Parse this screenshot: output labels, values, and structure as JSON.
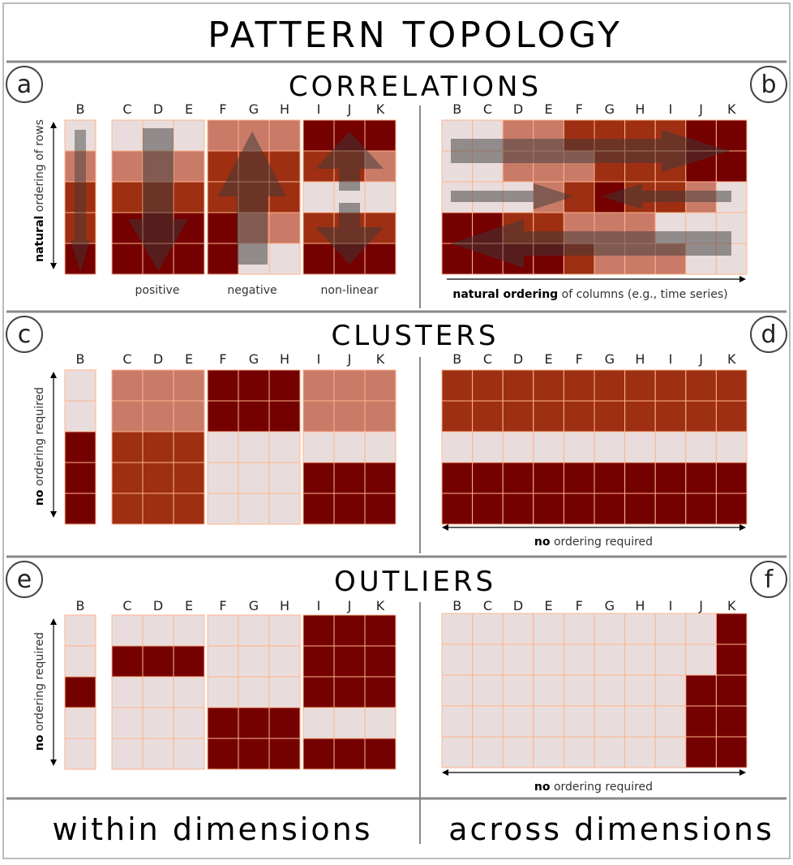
{
  "title": "PATTERN TOPOLOGY",
  "sections": {
    "correlations": "CORRELATIONS",
    "clusters": "CLUSTERS",
    "outliers": "OUTLIERS"
  },
  "panel_labels": [
    "a",
    "b",
    "c",
    "d",
    "e",
    "f"
  ],
  "columns": [
    "B",
    "C",
    "D",
    "E",
    "F",
    "G",
    "H",
    "I",
    "J",
    "K"
  ],
  "panel_a": {
    "axis_bold": "natural",
    "axis_rest": " ordering of rows",
    "group_labels": [
      "positive",
      "negative",
      "non-linear"
    ]
  },
  "panel_b": {
    "axis_bold": "natural ordering",
    "axis_rest": " of columns (e.g., time series)"
  },
  "panel_c": {
    "axis_bold": "no",
    "axis_rest": " ordering required"
  },
  "panel_d": {
    "axis_bold": "no",
    "axis_rest": " ordering required"
  },
  "panel_e": {
    "axis_bold": "no",
    "axis_rest": " ordering required"
  },
  "panel_f": {
    "axis_bold": "no",
    "axis_rest": " ordering required"
  },
  "footer": {
    "left": "within dimensions",
    "right": "across dimensions"
  },
  "colors": {
    "dark": "#750000",
    "mid": "#9e2f12",
    "light": "#c97b68",
    "pale": "#e8dddc",
    "grid_line": "#ffb38c",
    "arrow": "#3a3a3a"
  },
  "icons": {
    "arrow_down": "arrow-down-icon",
    "arrow_up": "arrow-up-icon",
    "arrow_right": "arrow-right-icon",
    "arrow_left": "arrow-left-icon"
  }
}
